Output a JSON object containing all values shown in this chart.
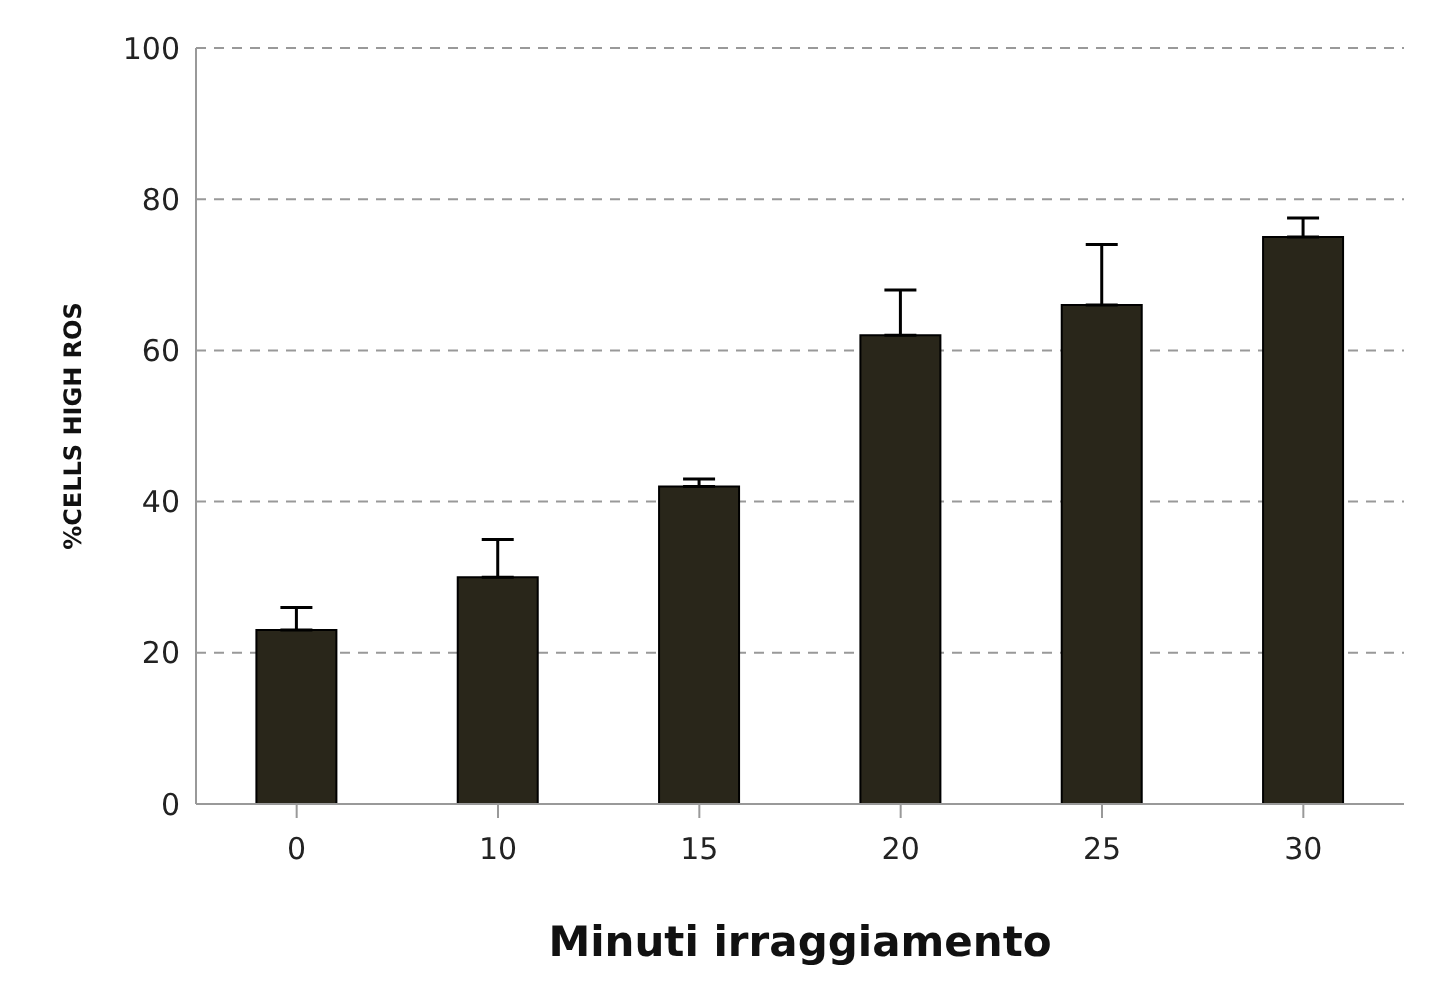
{
  "chart_data": {
    "type": "bar",
    "xlabel": "Minuti irraggiamento",
    "ylabel": "%CELLS HIGH ROS",
    "categories": [
      "0",
      "10",
      "15",
      "20",
      "25",
      "30"
    ],
    "values": [
      23,
      30,
      42,
      62,
      66,
      75
    ],
    "errors": [
      [
        23,
        26
      ],
      [
        30,
        35
      ],
      [
        42,
        43
      ],
      [
        62,
        68
      ],
      [
        66,
        74
      ],
      [
        75,
        77.5
      ]
    ],
    "color": "#29261a",
    "ylim": [
      0,
      100
    ],
    "yticks": [
      0,
      20,
      40,
      60,
      80,
      100
    ],
    "grid": "y",
    "legend": false
  }
}
